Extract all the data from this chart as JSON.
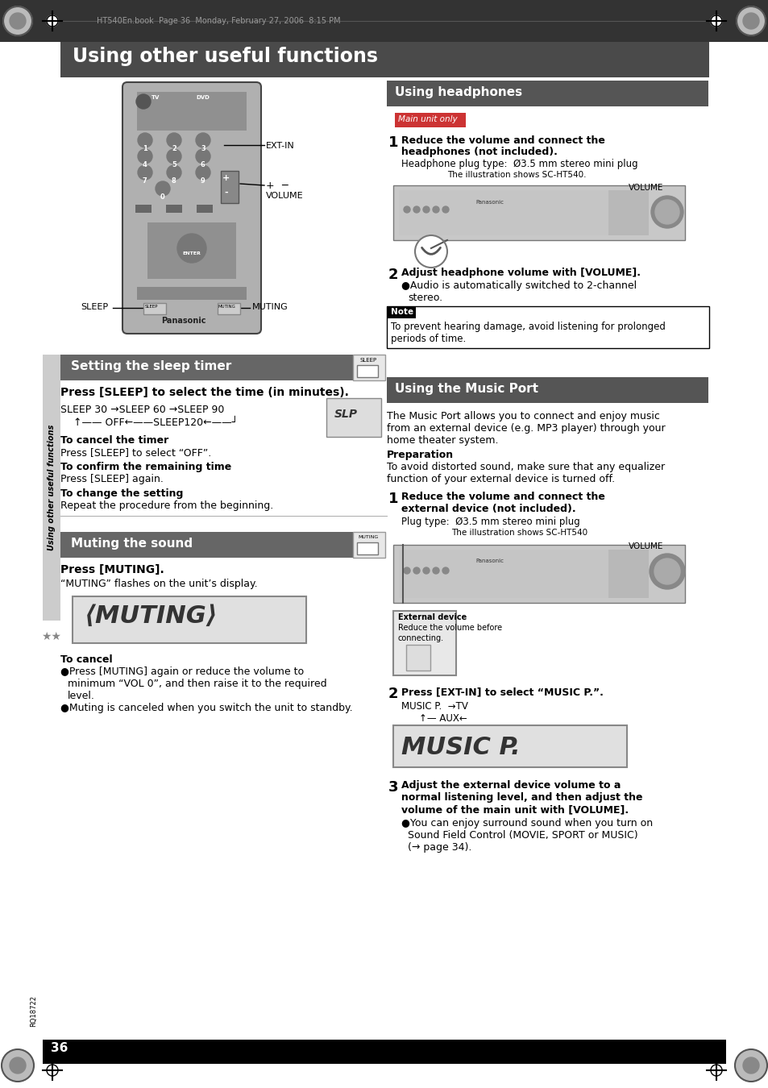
{
  "page_bg": "#ffffff",
  "header_bg": "#4a4a4a",
  "header_text": "Using other useful functions",
  "header_text_color": "#ffffff",
  "header_font_size": 18,
  "top_bar_bg": "#222222",
  "top_bar_text": "HT540En.book  Page 36  Monday, February 27, 2006  8:15 PM",
  "top_bar_text_color": "#aaaaaa",
  "section_header_bg": "#666666",
  "section_header_text_color": "#ffffff",
  "body_text_color": "#000000",
  "sleep_section_title": "Setting the sleep timer",
  "muting_section_title": "Muting the sound",
  "headphones_section_title": "Using headphones",
  "music_section_title": "Using the Music Port",
  "page_number": "36",
  "page_number_bg": "#000000",
  "page_number_color": "#ffffff",
  "sidebar_text": "Using other useful functions",
  "sidebar_bg": "#cccccc",
  "main_unit_only_bg": "#cc3333",
  "main_unit_only_text": "Main unit only",
  "note_label_bg": "#000000",
  "note_label_text": "Note",
  "note_label_color": "#ffffff"
}
